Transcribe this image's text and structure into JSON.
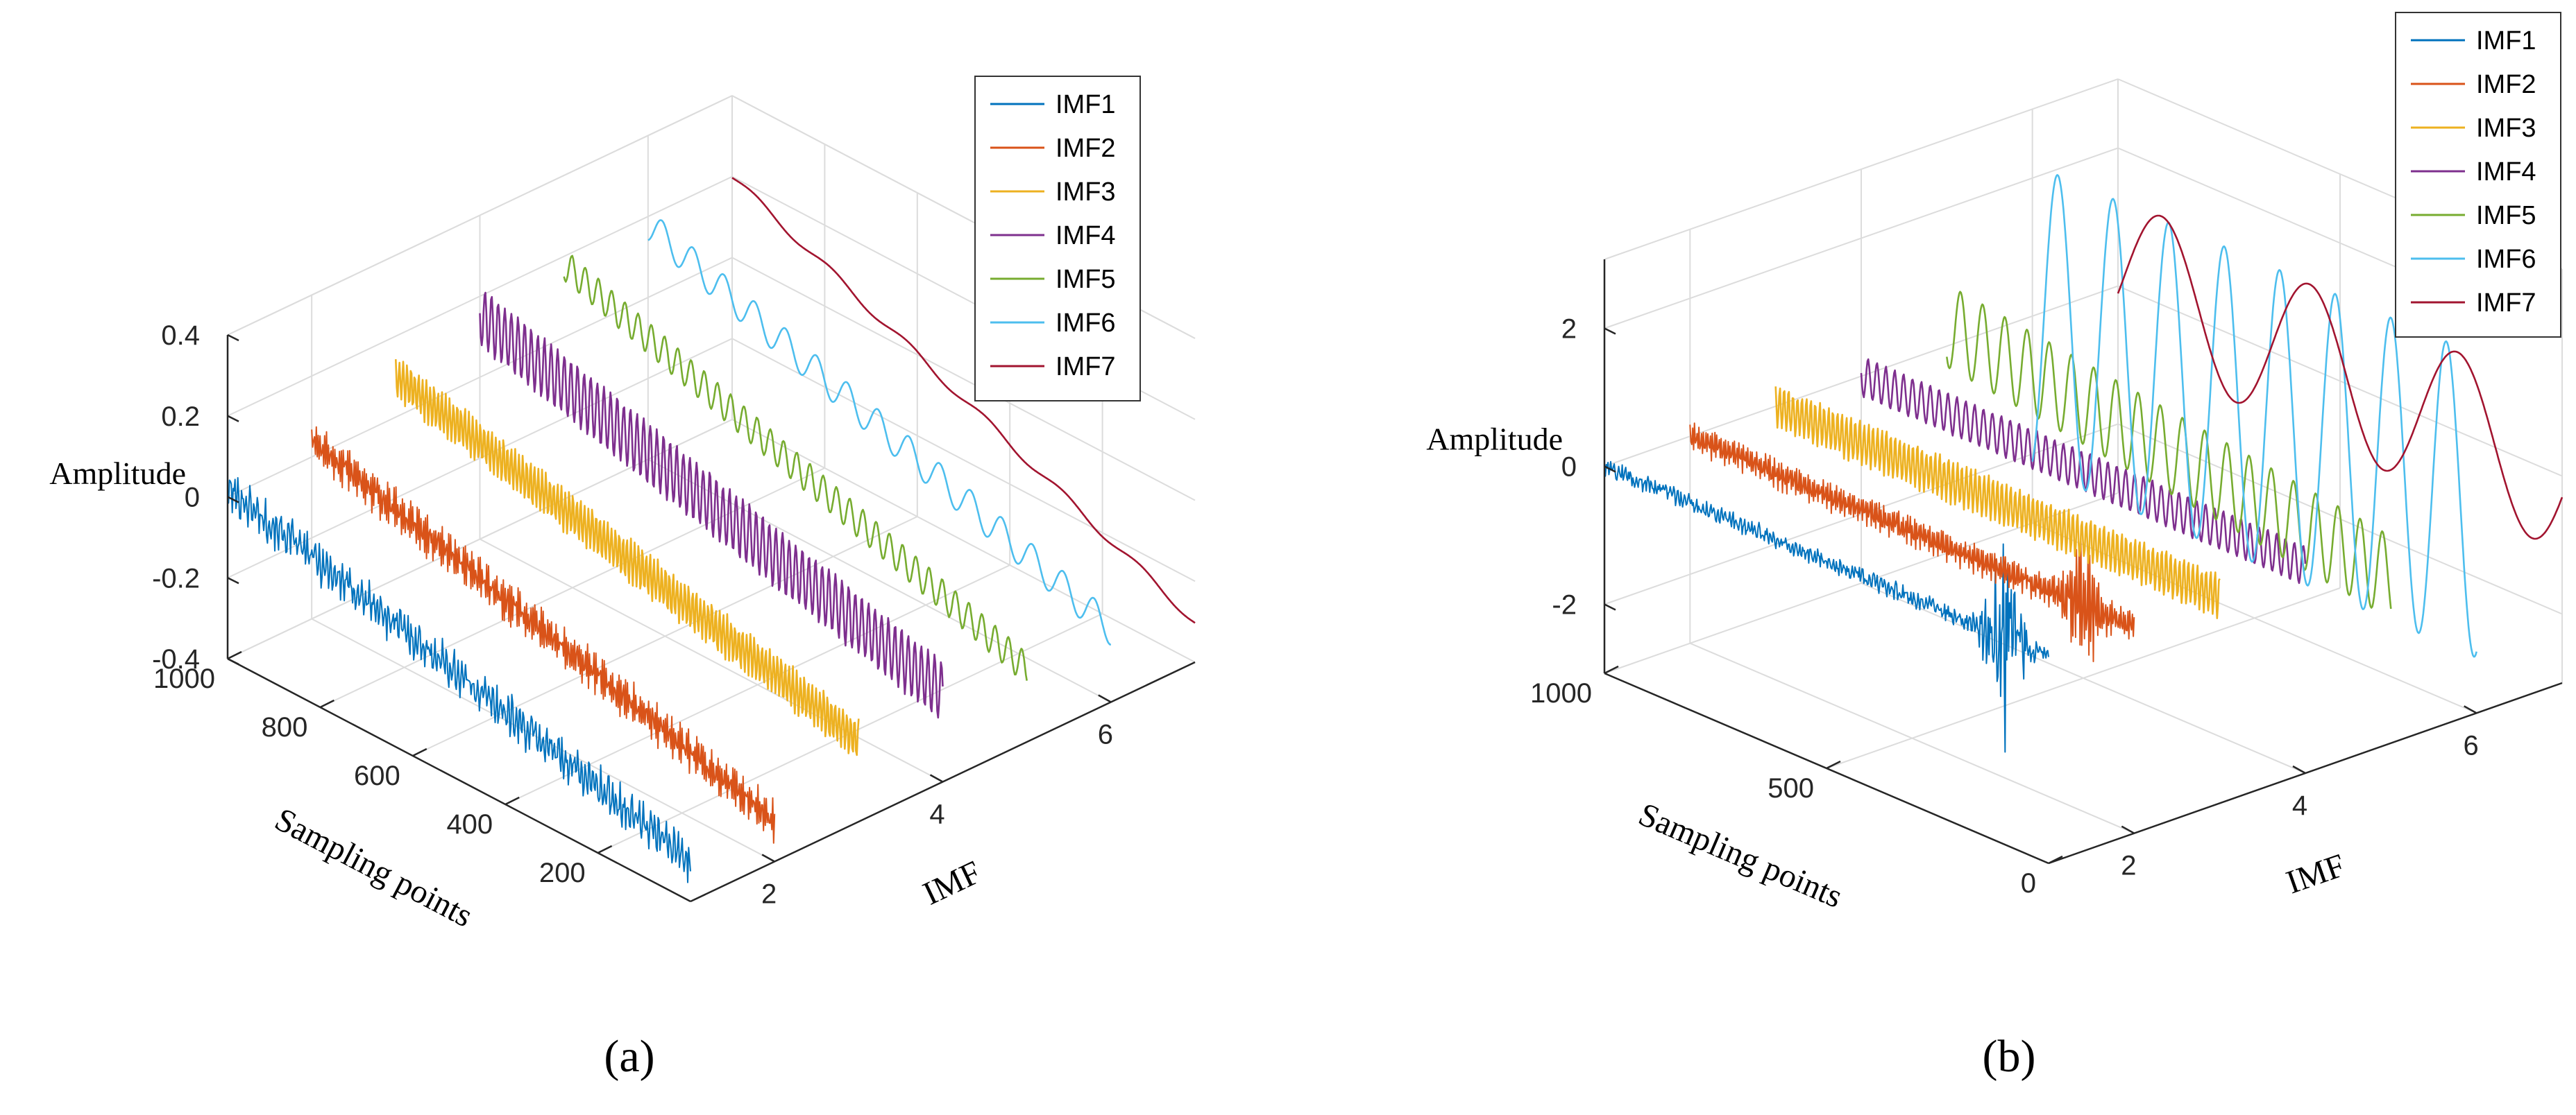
{
  "colors": {
    "IMF1": "#0072BD",
    "IMF2": "#D95319",
    "IMF3": "#EDB120",
    "IMF4": "#7E2F8E",
    "IMF5": "#77AC30",
    "IMF6": "#4DBEEE",
    "IMF7": "#A2142F",
    "axis": "#262626",
    "grid": "#dcdcdc"
  },
  "chart_data": [
    {
      "type": "line",
      "view": "3d",
      "panel_label": "(a)",
      "grid": true,
      "legend_position": "top-right",
      "xlabel": "IMF",
      "ylabel": "Sampling points",
      "zlabel": "Amplitude",
      "xlim": [
        1,
        7
      ],
      "ylim": [
        0,
        1000
      ],
      "zlim": [
        -0.4,
        0.4
      ],
      "xticks": [
        2,
        4,
        6
      ],
      "yticks": [
        200,
        400,
        600,
        800,
        1000
      ],
      "zticks": [
        -0.4,
        -0.2,
        0,
        0.2,
        0.4
      ],
      "xtick_labels": [
        "2",
        "4",
        "6"
      ],
      "ytick_labels": [
        "200",
        "400",
        "600",
        "800",
        "1000"
      ],
      "ztick_labels": [
        "-0.4",
        "-0.2",
        "0",
        "0.2",
        "0.4"
      ],
      "series": [
        {
          "name": "IMF1",
          "imf": 1,
          "mean_start": 0.02,
          "mean_end": -0.3,
          "amplitude": 0.06,
          "frequency": 0.38,
          "noise": 0.5
        },
        {
          "name": "IMF2",
          "imf": 2,
          "mean_start": 0.04,
          "mean_end": -0.3,
          "amplitude": 0.06,
          "frequency": 0.22,
          "noise": 0.3
        },
        {
          "name": "IMF3",
          "imf": 3,
          "mean_start": 0.1,
          "mean_end": -0.2,
          "amplitude": 0.06,
          "frequency": 0.12,
          "noise": 0.15
        },
        {
          "name": "IMF4",
          "imf": 4,
          "mean_start": 0.15,
          "mean_end": -0.18,
          "amplitude": 0.08,
          "frequency": 0.07,
          "noise": 0.08
        },
        {
          "name": "IMF5",
          "imf": 5,
          "mean_start": 0.18,
          "mean_end": -0.22,
          "amplitude": 0.04,
          "frequency": 0.035,
          "noise": 0.03
        },
        {
          "name": "IMF6",
          "imf": 6,
          "mean_start": 0.18,
          "mean_end": -0.22,
          "amplitude": 0.04,
          "frequency": 0.015,
          "noise": 0.0
        },
        {
          "name": "IMF7",
          "imf": 7,
          "mean_start": 0.2,
          "mean_end": -0.3,
          "amplitude": 0.01,
          "frequency": 0.006,
          "noise": 0.0
        }
      ]
    },
    {
      "type": "line",
      "view": "3d",
      "panel_label": "(b)",
      "grid": true,
      "legend_position": "top-right",
      "xlabel": "IMF",
      "ylabel": "Sampling points",
      "zlabel": "Amplitude",
      "xlim": [
        1,
        7
      ],
      "ylim": [
        0,
        1000
      ],
      "zlim": [
        -3,
        3
      ],
      "xticks": [
        2,
        4,
        6
      ],
      "yticks": [
        0,
        500,
        1000
      ],
      "zticks": [
        -2,
        0,
        2
      ],
      "xtick_labels": [
        "2",
        "4",
        "6"
      ],
      "ytick_labels": [
        "0",
        "500",
        "1000"
      ],
      "ztick_labels": [
        "-2",
        "0",
        "2"
      ],
      "series": [
        {
          "name": "IMF1",
          "imf": 1,
          "mean_start": 0.0,
          "mean_end": 0.0,
          "amplitude": 0.15,
          "frequency": 0.38,
          "noise": 0.6,
          "burst_at": 0.9,
          "burst_amplitude": 1.6
        },
        {
          "name": "IMF2",
          "imf": 2,
          "mean_start": 0.0,
          "mean_end": 0.0,
          "amplitude": 0.25,
          "frequency": 0.2,
          "noise": 0.3,
          "burst_at": 0.88,
          "burst_amplitude": 0.9
        },
        {
          "name": "IMF3",
          "imf": 3,
          "mean_start": 0.0,
          "mean_end": 0.0,
          "amplitude": 0.35,
          "frequency": 0.1,
          "noise": 0.15
        },
        {
          "name": "IMF4",
          "imf": 4,
          "mean_start": 0.0,
          "mean_end": 0.0,
          "amplitude": 0.3,
          "frequency": 0.05,
          "noise": 0.05
        },
        {
          "name": "IMF5",
          "imf": 5,
          "mean_start": 0.3,
          "mean_end": -0.6,
          "amplitude": 0.6,
          "frequency": 0.02,
          "noise": 0.0
        },
        {
          "name": "IMF6",
          "imf": 6,
          "mean_start": 0.0,
          "mean_end": 0.0,
          "amplitude": 2.2,
          "frequency": 0.008,
          "noise": 0.0
        },
        {
          "name": "IMF7",
          "imf": 7,
          "mean_start": 0.2,
          "mean_end": 0.0,
          "amplitude": 1.1,
          "frequency": 0.003,
          "noise": 0.0
        }
      ]
    }
  ]
}
